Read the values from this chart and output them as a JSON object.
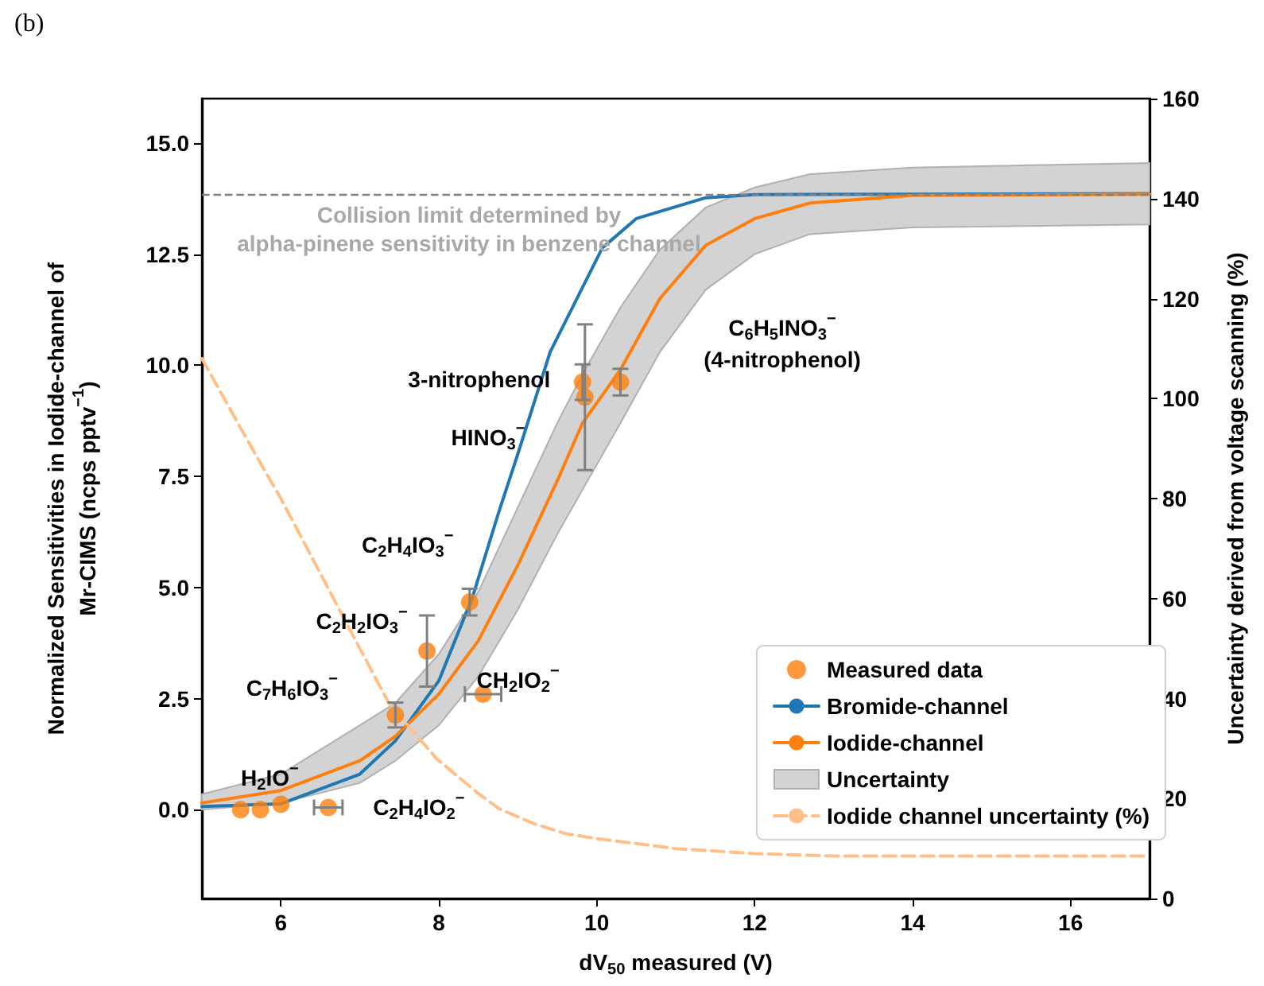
{
  "chart_data": {
    "type": "line",
    "title": "(b)",
    "xlabel": "dV$_{50}$ measured (V)",
    "ylabel": "Normalized Sensitivities in Iodide-channel of\nMr-CIMS (ncps pptv$^{−1}$)",
    "y2label": "Uncertainty derived from voltage scanning (%)",
    "xlim": [
      5,
      17
    ],
    "xticks": [
      6,
      8,
      10,
      12,
      14,
      16
    ],
    "ylim": [
      -2,
      16
    ],
    "yticks": [
      {
        "value": 0,
        "label": "0.0"
      },
      {
        "value": 2.5,
        "label": "2.5"
      },
      {
        "value": 5,
        "label": "5.0"
      },
      {
        "value": 7.5,
        "label": "7.5"
      },
      {
        "value": 10,
        "label": "10.0"
      },
      {
        "value": 12.5,
        "label": "12.5"
      },
      {
        "value": 15,
        "label": "15.0"
      }
    ],
    "y2lim": [
      0,
      160
    ],
    "y2ticks": [
      0,
      20,
      40,
      60,
      80,
      100,
      120,
      140,
      160
    ],
    "grid": false,
    "legend": "bottom right",
    "series": [
      {
        "name": "Measured data",
        "type": "scatter",
        "marker": "circle",
        "color": "#ff7f0e",
        "x": [
          5.49,
          5.74,
          6.0,
          6.6,
          7.45,
          7.85,
          8.39,
          8.56,
          9.82,
          9.85,
          10.3
        ],
        "values": [
          0.0,
          0.0,
          0.12,
          0.05,
          2.13,
          3.57,
          4.67,
          2.6,
          9.62,
          9.28,
          9.62
        ],
        "errors": [
          null,
          null,
          null,
          null,
          0.28,
          0.8,
          0.3,
          null,
          0.4,
          1.64,
          0.3
        ],
        "xerrors": [
          null,
          null,
          null,
          0.18,
          null,
          null,
          null,
          0.23,
          null,
          null,
          null
        ]
      },
      {
        "name": "Bromide-channel",
        "type": "line",
        "color": "#1f77b4",
        "x": [
          5,
          6,
          7,
          7.45,
          8,
          8.43,
          8.76,
          9,
          9.41,
          10.07,
          10.5,
          11.38,
          12,
          17
        ],
        "values": [
          0.07,
          0.13,
          0.8,
          1.55,
          2.9,
          4.8,
          6.7,
          8.0,
          10.3,
          12.64,
          13.3,
          13.77,
          13.84,
          13.86
        ]
      },
      {
        "name": "Iodide-channel",
        "type": "line",
        "color": "#ff7f0e",
        "x": [
          5,
          6,
          7,
          7.45,
          8,
          8.5,
          9,
          9.5,
          9.82,
          10.3,
          10.8,
          11.38,
          12,
          12.7,
          14,
          17
        ],
        "values": [
          0.15,
          0.43,
          1.1,
          1.65,
          2.6,
          3.8,
          5.5,
          7.4,
          8.7,
          9.9,
          11.5,
          12.7,
          13.3,
          13.65,
          13.82,
          13.85
        ],
        "lower": [
          0.0,
          0.15,
          0.6,
          1.1,
          1.9,
          3.0,
          4.5,
          6.2,
          7.2,
          8.7,
          10.3,
          11.7,
          12.5,
          12.95,
          13.1,
          13.17
        ],
        "upper": [
          0.35,
          0.8,
          1.9,
          2.4,
          3.5,
          4.9,
          6.8,
          8.7,
          9.8,
          11.3,
          12.6,
          13.55,
          14.0,
          14.3,
          14.45,
          14.55
        ]
      },
      {
        "name": "Uncertainty",
        "type": "area",
        "color": "#d3d3d3"
      },
      {
        "name": "Iodide channel uncertainty (%)",
        "type": "line",
        "axis": "y2",
        "line_style": "dashed",
        "color": "#ffbf86",
        "x": [
          5,
          5.6,
          6,
          6.5,
          7,
          7.37,
          7.97,
          8.5,
          8.76,
          9.2,
          9.6,
          10,
          10.5,
          11,
          12,
          13,
          17
        ],
        "values": [
          108,
          91,
          80,
          65,
          50,
          39,
          28,
          21,
          18,
          15,
          13,
          12,
          11,
          10,
          9,
          8.5,
          8.5
        ]
      }
    ],
    "ref_lines": [
      {
        "axis": "y",
        "value": 13.85,
        "label": "Collision limit determined by\nalpha-pinene sensitivity in benzene channel",
        "color": "#808080",
        "line_style": "dashed"
      }
    ],
    "annotations": [
      {
        "text": "3-nitrophenol",
        "x": 9.82,
        "y": 9.62
      },
      "HINO$_{3}$$^{−}$",
      "C$_{6}$H$_{5}$INO$_{3}$$^{−}$\n(4-nitrophenol)",
      {
        "text": "C$_{2}$H$_{4}$IO$_{3}$$^{−}$",
        "x": 8.39,
        "y": 4.67
      },
      {
        "text": "C$_{2}$H$_{2}$IO$_{3}$$^{−}$",
        "x": 7.85,
        "y": 3.57
      },
      {
        "text": "C$_{7}$H$_{6}$IO$_{3}$$^{−}$",
        "x": 7.45,
        "y": 2.13
      },
      {
        "text": "CH$_{2}$IO$_{2}$$^{−}$",
        "x": 8.56,
        "y": 2.6
      },
      {
        "text": "H$_{2}$IO$^{−}$",
        "x": 6.0,
        "y": 0.12
      },
      {
        "text": "C$_{2}$H$_{4}$IO$_{2}$$^{−}$",
        "x": 6.6,
        "y": 0.05
      }
    ]
  }
}
